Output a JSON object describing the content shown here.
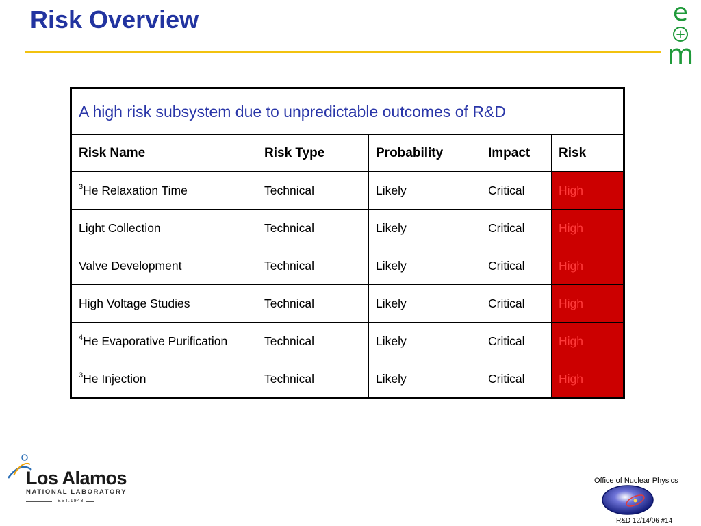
{
  "slide": {
    "title": "Risk Overview",
    "logo_letters": {
      "top": "e",
      "middle": "+",
      "bottom": "m"
    }
  },
  "table": {
    "caption": "A high risk subsystem due to unpredictable outcomes of R&D",
    "headers": [
      "Risk Name",
      "Risk Type",
      "Probability",
      "Impact",
      "Risk"
    ],
    "rows": [
      {
        "sup": "3",
        "name": "He Relaxation Time",
        "type": "Technical",
        "probability": "Likely",
        "impact": "Critical",
        "risk": "High"
      },
      {
        "sup": "",
        "name": "Light Collection",
        "type": "Technical",
        "probability": "Likely",
        "impact": "Critical",
        "risk": "High"
      },
      {
        "sup": "",
        "name": "Valve Development",
        "type": "Technical",
        "probability": "Likely",
        "impact": "Critical",
        "risk": "High"
      },
      {
        "sup": "",
        "name": "High Voltage Studies",
        "type": "Technical",
        "probability": "Likely",
        "impact": "Critical",
        "risk": "High"
      },
      {
        "sup": "4",
        "name": "He Evaporative Purification",
        "type": "Technical",
        "probability": "Likely",
        "impact": "Critical",
        "risk": "High"
      },
      {
        "sup": "3",
        "name": "He Injection",
        "type": "Technical",
        "probability": "Likely",
        "impact": "Critical",
        "risk": "High"
      }
    ]
  },
  "footer": {
    "lab_name": "Los Alamos",
    "lab_sub": "NATIONAL LABORATORY",
    "lab_est": "EST.1943",
    "office": "Office of Nuclear Physics",
    "slide_ref": "R&D 12/14/06  #14"
  },
  "colors": {
    "title": "#2234a0",
    "rule": "#f2c20f",
    "logo": "#1f9a3a",
    "risk_high_bg": "#cc0000",
    "risk_high_text": "#ff3a3a"
  }
}
